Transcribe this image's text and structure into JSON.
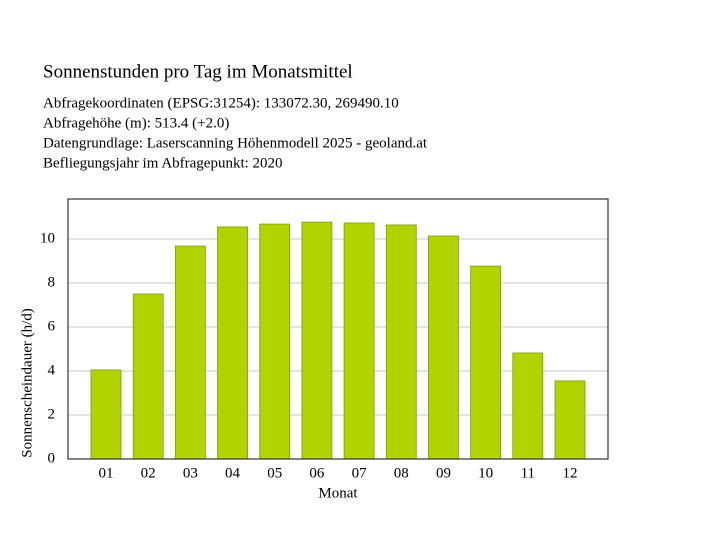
{
  "chart_data": {
    "type": "bar",
    "title": "Sonnenstunden pro Tag im Monatsmittel",
    "subtitle_lines": [
      "Abfragekoordinaten (EPSG:31254): 133072.30, 269490.10",
      "Abfragehöhe (m): 513.4 (+2.0)",
      "Datengrundlage: Laserscanning Höhenmodell 2025 - geoland.at",
      "Befliegungsjahr im Abfragepunkt: 2020"
    ],
    "x_label": "Monat",
    "y_label": "Sonnenscheindauer (h/d)",
    "categories": [
      "01",
      "02",
      "03",
      "04",
      "05",
      "06",
      "07",
      "08",
      "09",
      "10",
      "11",
      "12"
    ],
    "values": [
      4.05,
      7.5,
      9.68,
      10.55,
      10.68,
      10.77,
      10.73,
      10.64,
      10.14,
      8.77,
      4.82,
      3.55
    ],
    "color": "#b3d300",
    "ylim": [
      0,
      11.82
    ],
    "yticks": [
      0,
      2,
      4,
      6,
      8,
      10
    ],
    "grid": true
  }
}
